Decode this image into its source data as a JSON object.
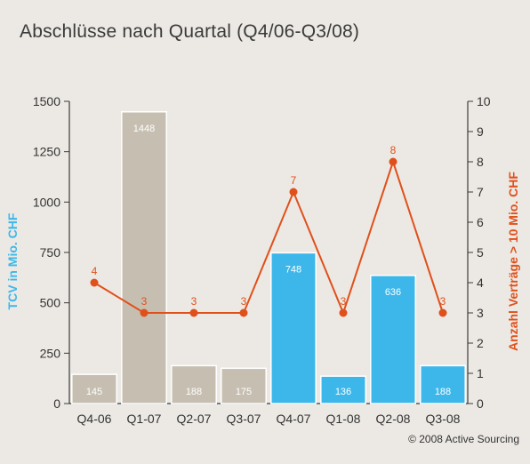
{
  "chart_data": {
    "type": "bar",
    "title": "Abschlüsse nach Quartal (Q4/06-Q3/08)",
    "categories": [
      "Q4-06",
      "Q1-07",
      "Q2-07",
      "Q3-07",
      "Q4-07",
      "Q1-08",
      "Q2-08",
      "Q3-08"
    ],
    "series": [
      {
        "name": "TCV in Mio. CHF",
        "type": "bar",
        "axis": "left",
        "values": [
          145,
          1448,
          188,
          175,
          748,
          136,
          636,
          188
        ],
        "bar_colors": [
          "#c6bfb1",
          "#c6bfb1",
          "#c6bfb1",
          "#c6bfb1",
          "#3db7ea",
          "#3db7ea",
          "#3db7ea",
          "#3db7ea"
        ]
      },
      {
        "name": "Anzahl Verträge > 10 Mio. CHF",
        "type": "line",
        "axis": "right",
        "values": [
          4,
          3,
          3,
          3,
          7,
          3,
          8,
          3
        ],
        "color": "#e0501b"
      }
    ],
    "ylabel": "TCV in Mio. CHF",
    "y2label": "Anzahl Verträge > 10 Mio. CHF",
    "ylim": [
      0,
      1500
    ],
    "yticks": [
      0,
      250,
      500,
      750,
      1000,
      1250,
      1500
    ],
    "y2lim": [
      0,
      10
    ],
    "y2ticks": [
      0,
      1,
      2,
      3,
      4,
      5,
      6,
      7,
      8,
      9,
      10
    ],
    "grid": false
  },
  "colors": {
    "background": "#ece9e4",
    "bar_grey": "#c6bfb1",
    "bar_blue": "#3db7ea",
    "line_orange": "#e0501b",
    "left_axis_label": "#3db7ea",
    "right_axis_label": "#e0501b"
  },
  "copyright": "© 2008 Active Sourcing"
}
